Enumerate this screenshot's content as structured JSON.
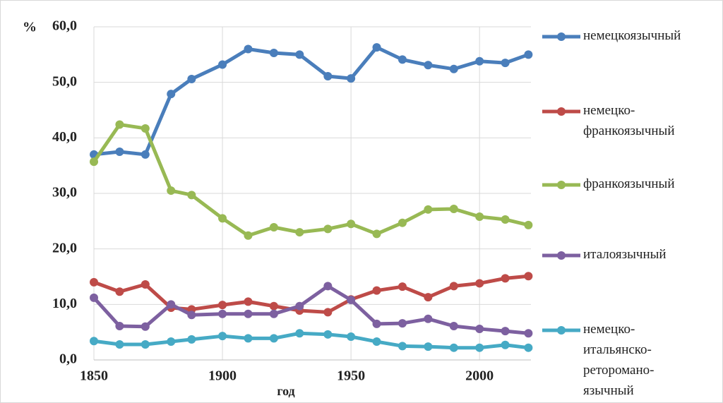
{
  "chart_data": {
    "type": "line",
    "y_label": "%",
    "x_label": "год",
    "x": [
      1850,
      1860,
      1870,
      1880,
      1888,
      1900,
      1910,
      1920,
      1930,
      1941,
      1950,
      1960,
      1970,
      1980,
      1990,
      2000,
      2010,
      2019
    ],
    "xlim": [
      1850,
      2020
    ],
    "xticks": [
      1850,
      1900,
      1950,
      2000
    ],
    "ylim": [
      0,
      60
    ],
    "yticks": [
      {
        "value": 0,
        "label": "0,0"
      },
      {
        "value": 10,
        "label": "10,0"
      },
      {
        "value": 20,
        "label": "20,0"
      },
      {
        "value": 30,
        "label": "30,0"
      },
      {
        "value": 40,
        "label": "40,0"
      },
      {
        "value": 50,
        "label": "50,0"
      },
      {
        "value": 60,
        "label": "60,0"
      }
    ],
    "grid": true,
    "legend": "right",
    "series": [
      {
        "name": "немецкоязычный",
        "color": "#4a7ebb",
        "values": [
          37.0,
          37.5,
          37.0,
          47.9,
          50.6,
          53.2,
          56.0,
          55.3,
          55.0,
          51.1,
          50.7,
          56.3,
          54.1,
          53.1,
          52.4,
          53.8,
          53.5,
          55.0
        ]
      },
      {
        "name": "немецко-франкоязычный",
        "color": "#be4b48",
        "values": [
          14.0,
          12.3,
          13.6,
          9.4,
          9.1,
          9.9,
          10.5,
          9.7,
          8.9,
          8.6,
          10.9,
          12.5,
          13.2,
          11.3,
          13.3,
          13.8,
          14.7,
          15.1
        ]
      },
      {
        "name": "франкоязычный",
        "color": "#98b954",
        "values": [
          35.7,
          42.4,
          41.7,
          30.5,
          29.7,
          25.5,
          22.4,
          23.9,
          23.0,
          23.6,
          24.5,
          22.7,
          24.7,
          27.1,
          27.2,
          25.8,
          25.3,
          24.3
        ]
      },
      {
        "name": "италоязычный",
        "color": "#7d60a0",
        "values": [
          11.2,
          6.1,
          6.0,
          10.0,
          8.1,
          8.3,
          8.3,
          8.3,
          9.7,
          13.3,
          10.8,
          6.5,
          6.6,
          7.4,
          6.1,
          5.6,
          5.2,
          4.8
        ]
      },
      {
        "name": "немецко-итальянско-ретороманo-язычный",
        "color": "#46aac5",
        "values": [
          3.4,
          2.8,
          2.8,
          3.3,
          3.7,
          4.3,
          3.9,
          3.9,
          4.8,
          4.6,
          4.2,
          3.3,
          2.5,
          2.4,
          2.2,
          2.2,
          2.7,
          2.2
        ]
      }
    ]
  }
}
